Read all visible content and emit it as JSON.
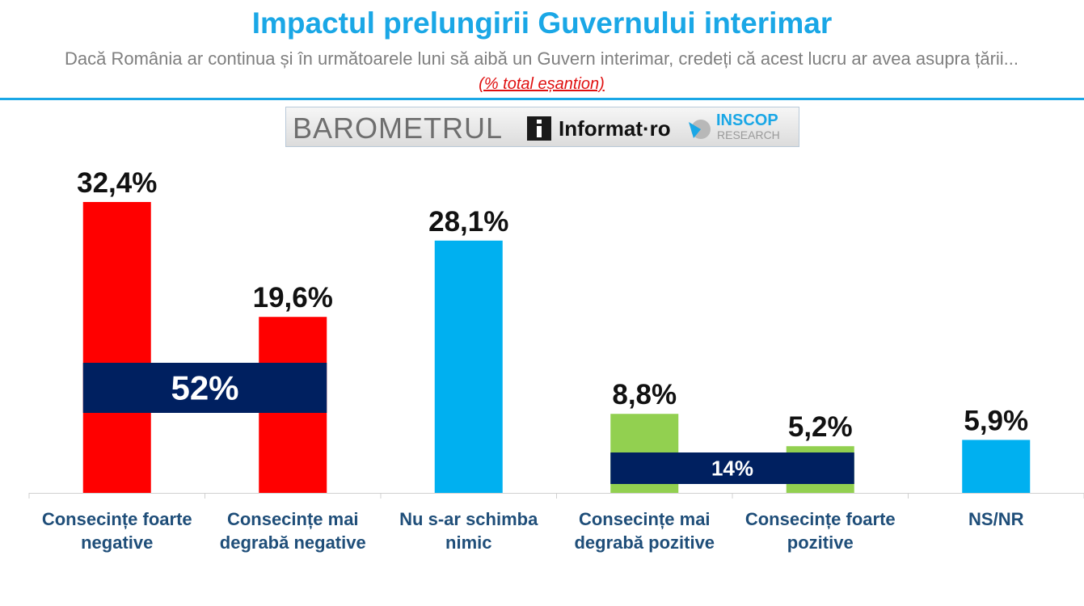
{
  "header": {
    "title": "Impactul prelungirii Guvernului interimar",
    "subtitle": "Dacă România ar continua și în următoarele luni să aibă un Guvern interimar, credeți că acest lucru ar avea asupra țării...",
    "note": "(% total eșantion)"
  },
  "logo": {
    "barometru": "BAROMETRUL",
    "informat": "Informat·ro",
    "inscop": "INSCOP",
    "research": "RESEARCH"
  },
  "chart_data": {
    "type": "bar",
    "categories": [
      "Consecințe foarte negative",
      "Consecințe mai degrabă negative",
      "Nu s-ar schimba nimic",
      "Consecințe mai degrabă pozitive",
      "Consecințe foarte pozitive",
      "NS/NR"
    ],
    "values": [
      32.4,
      19.6,
      28.1,
      8.8,
      5.2,
      5.9
    ],
    "value_labels": [
      "32,4%",
      "19,6%",
      "28,1%",
      "8,8%",
      "5,2%",
      "5,9%"
    ],
    "colors": [
      "#ff0000",
      "#ff0000",
      "#00b0f0",
      "#92d050",
      "#92d050",
      "#00b0f0"
    ],
    "groups": [
      {
        "label": "52%",
        "from": 0,
        "to": 1,
        "color": "#002060"
      },
      {
        "label": "14%",
        "from": 3,
        "to": 4,
        "color": "#002060"
      }
    ],
    "ylim": [
      0,
      35
    ],
    "grid": false,
    "legend": "none"
  }
}
